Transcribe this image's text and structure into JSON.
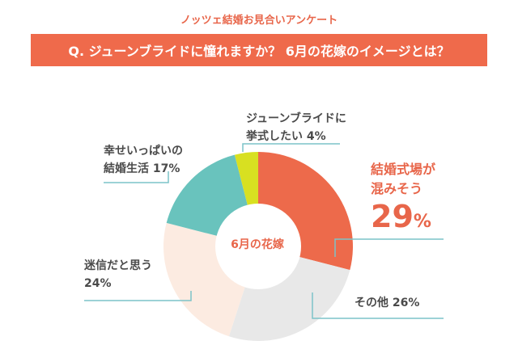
{
  "header": {
    "survey_title": "ノッツェ結婚お見合いアンケート",
    "question": "Q. ジューンブライドに憧れますか？ 6月の花嫁のイメージとは？"
  },
  "chart_data": {
    "type": "pie",
    "donut": true,
    "center_label": "6月の花嫁",
    "slices": [
      {
        "line1": "結婚式場が",
        "line2": "混みそう",
        "value": 29,
        "value_text": "29",
        "unit": "%",
        "color": "#ed6a4b"
      },
      {
        "line1": "その他",
        "line2": "",
        "value": 26,
        "value_text": "26%",
        "unit": "",
        "color": "#e8e8e8"
      },
      {
        "line1": "迷信だと思う",
        "line2": "",
        "value": 24,
        "value_text": "24%",
        "unit": "",
        "color": "#fcebe1"
      },
      {
        "line1": "幸せいっぱいの",
        "line2": "結婚生活",
        "value": 17,
        "value_text": "17%",
        "unit": "",
        "color": "#69c3bd"
      },
      {
        "line1": "ジューンブライドに",
        "line2": "挙式したい",
        "value": 4,
        "value_text": "4%",
        "unit": "",
        "color": "#d8e021"
      }
    ],
    "leader_color": "#7cc3c8"
  }
}
